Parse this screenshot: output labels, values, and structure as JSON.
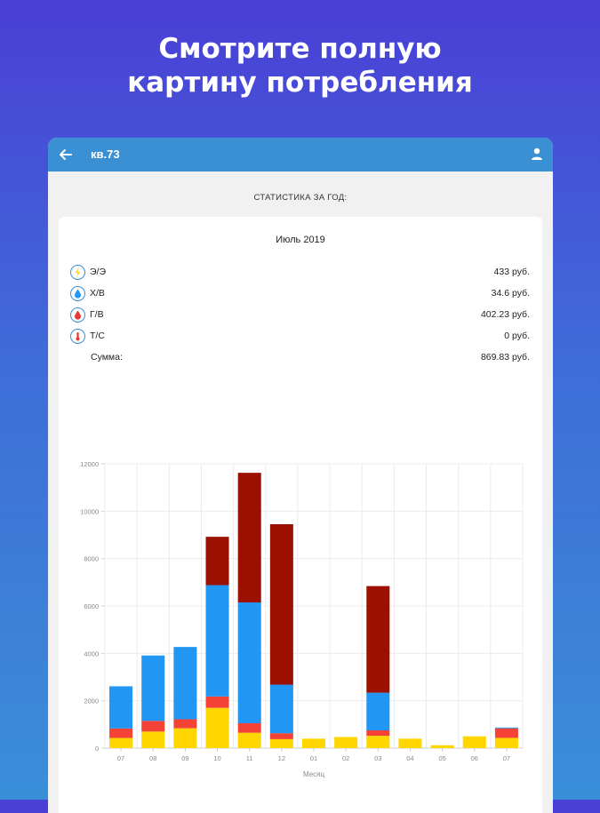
{
  "promo": {
    "line1": "Смотрите полную",
    "line2": "картину потребления"
  },
  "appbar": {
    "title": "кв.73"
  },
  "section_title": "СТАТИСТИКА ЗА ГОД:",
  "summary": {
    "period": "Июль 2019",
    "items": [
      {
        "label": "Э/Э",
        "value": "433 руб.",
        "icon": "lightning-icon"
      },
      {
        "label": "Х/В",
        "value": "34.6 руб.",
        "icon": "water-drop-icon"
      },
      {
        "label": "Г/В",
        "value": "402.23 руб.",
        "icon": "hot-water-drop-icon"
      },
      {
        "label": "Т/С",
        "value": "0 руб.",
        "icon": "thermometer-icon"
      }
    ],
    "total_label": "Сумма:",
    "total_value": "869.83 руб."
  },
  "colors": {
    "electricity": "#ffd600",
    "hot_water": "#f44336",
    "cold_water": "#2196f3",
    "heating": "#9b1000"
  },
  "chart_data": {
    "type": "bar",
    "stacked": true,
    "xlabel": "Месяц",
    "ylabel": "",
    "ylim": [
      0,
      12000
    ],
    "yticks": [
      "0",
      "2000",
      "4000",
      "6000",
      "8000",
      "10000",
      "12000"
    ],
    "categories": [
      "07",
      "08",
      "09",
      "10",
      "11",
      "12",
      "01",
      "02",
      "03",
      "04",
      "05",
      "06",
      "07"
    ],
    "grid": true,
    "series": [
      {
        "key": "electricity",
        "values": [
          430,
          700,
          840,
          1700,
          650,
          380,
          400,
          470,
          520,
          400,
          120,
          500,
          433
        ]
      },
      {
        "key": "hot_water",
        "values": [
          400,
          450,
          380,
          480,
          400,
          250,
          0,
          0,
          230,
          0,
          0,
          0,
          402
        ]
      },
      {
        "key": "cold_water",
        "values": [
          1780,
          2760,
          3050,
          4700,
          5100,
          2050,
          0,
          0,
          1590,
          0,
          0,
          0,
          35
        ]
      },
      {
        "key": "heating",
        "values": [
          0,
          0,
          0,
          2040,
          5470,
          6770,
          0,
          0,
          4500,
          0,
          0,
          0,
          0
        ]
      }
    ]
  }
}
